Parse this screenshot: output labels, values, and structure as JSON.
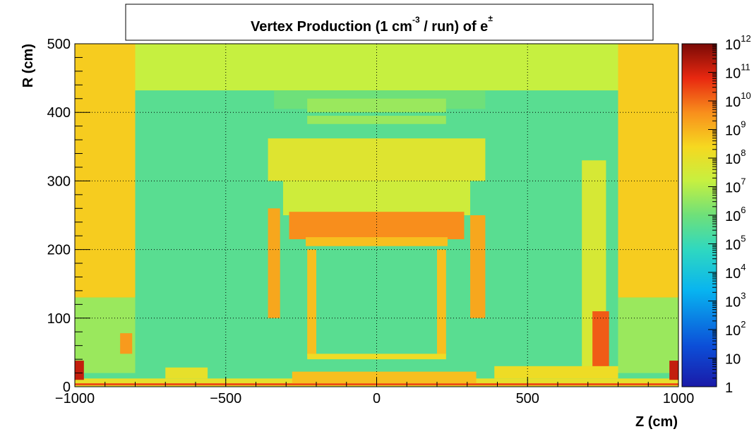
{
  "chart_data": {
    "type": "heatmap",
    "title_main": "Vertex Production (1 cm",
    "title_sup1": "-3",
    "title_mid": " / run) of   e",
    "title_sup2": "±",
    "xlabel": "Z (cm)",
    "ylabel": "R (cm)",
    "xlim": [
      -1000,
      1000
    ],
    "ylim": [
      0,
      500
    ],
    "x_ticks": [
      -1000,
      -500,
      0,
      500,
      1000
    ],
    "x_tick_labels": [
      "−1000",
      "−500",
      "0",
      "500",
      "1000"
    ],
    "y_ticks": [
      0,
      100,
      200,
      300,
      400,
      500
    ],
    "y_tick_labels": [
      "0",
      "100",
      "200",
      "300",
      "400",
      "500"
    ],
    "grid": true,
    "colorbar": {
      "scale": "log",
      "min_exp": 0,
      "max_exp": 12,
      "labels": [
        {
          "base": "1",
          "exp": ""
        },
        {
          "base": "10",
          "exp": ""
        },
        {
          "base": "10",
          "exp": "2"
        },
        {
          "base": "10",
          "exp": "3"
        },
        {
          "base": "10",
          "exp": "4"
        },
        {
          "base": "10",
          "exp": "5"
        },
        {
          "base": "10",
          "exp": "6"
        },
        {
          "base": "10",
          "exp": "7"
        },
        {
          "base": "10",
          "exp": "8"
        },
        {
          "base": "10",
          "exp": "9"
        },
        {
          "base": "10",
          "exp": "10"
        },
        {
          "base": "10",
          "exp": "11"
        },
        {
          "base": "10",
          "exp": "12"
        }
      ]
    },
    "regions": [
      {
        "name": "background",
        "z": [
          -1000,
          1000
        ],
        "r": [
          0,
          500
        ],
        "level": 5.6
      },
      {
        "name": "upper-band",
        "z": [
          -1000,
          1000
        ],
        "r": [
          432,
          500
        ],
        "level": 7.2
      },
      {
        "name": "left-endcap",
        "z": [
          -1000,
          -800
        ],
        "r": [
          130,
          500
        ],
        "level": 8.6
      },
      {
        "name": "right-endcap",
        "z": [
          800,
          1000
        ],
        "r": [
          130,
          500
        ],
        "level": 8.6
      },
      {
        "name": "left-endcap-lower",
        "z": [
          -1000,
          -800
        ],
        "r": [
          20,
          130
        ],
        "level": 6.6
      },
      {
        "name": "right-endcap-lower",
        "z": [
          800,
          1000
        ],
        "r": [
          20,
          130
        ],
        "level": 6.6
      },
      {
        "name": "upper-structure",
        "z": [
          -340,
          360
        ],
        "r": [
          405,
          432
        ],
        "level": 6.0
      },
      {
        "name": "top-slab-1",
        "z": [
          -230,
          230
        ],
        "r": [
          383,
          395
        ],
        "level": 6.6
      },
      {
        "name": "top-slab-2",
        "z": [
          -230,
          230
        ],
        "r": [
          400,
          420
        ],
        "level": 6.6
      },
      {
        "name": "magnet-yoke",
        "z": [
          -360,
          360
        ],
        "r": [
          300,
          362
        ],
        "level": 7.8
      },
      {
        "name": "calorimeter-upper",
        "z": [
          -310,
          310
        ],
        "r": [
          250,
          300
        ],
        "level": 7.4
      },
      {
        "name": "solenoid",
        "z": [
          -290,
          290
        ],
        "r": [
          215,
          255
        ],
        "level": 9.6
      },
      {
        "name": "solenoid-support",
        "z": [
          -235,
          235
        ],
        "r": [
          205,
          218
        ],
        "level": 8.8
      },
      {
        "name": "left-calo-wall",
        "z": [
          -360,
          -320
        ],
        "r": [
          100,
          260
        ],
        "level": 9.2
      },
      {
        "name": "right-calo-wall",
        "z": [
          310,
          360
        ],
        "r": [
          100,
          250
        ],
        "level": 9.2
      },
      {
        "name": "left-inner-wall",
        "z": [
          -230,
          -200
        ],
        "r": [
          45,
          200
        ],
        "level": 8.8
      },
      {
        "name": "right-inner-wall",
        "z": [
          200,
          230
        ],
        "r": [
          45,
          200
        ],
        "level": 8.8
      },
      {
        "name": "bottom-slab",
        "z": [
          -230,
          230
        ],
        "r": [
          40,
          48
        ],
        "level": 8.2
      },
      {
        "name": "beam-floor",
        "z": [
          -1000,
          1000
        ],
        "r": [
          0,
          12
        ],
        "level": 8.0
      },
      {
        "name": "beam-line",
        "z": [
          -1000,
          1000
        ],
        "r": [
          2,
          5
        ],
        "level": 10.4
      },
      {
        "name": "left-small-block",
        "z": [
          -850,
          -810
        ],
        "r": [
          48,
          78
        ],
        "level": 9.4
      },
      {
        "name": "left-corner",
        "z": [
          -1000,
          -970
        ],
        "r": [
          10,
          38
        ],
        "level": 11.2
      },
      {
        "name": "right-corner",
        "z": [
          970,
          1000
        ],
        "r": [
          10,
          38
        ],
        "level": 11.2
      },
      {
        "name": "right-support-1",
        "z": [
          680,
          760
        ],
        "r": [
          20,
          330
        ],
        "level": 7.6
      },
      {
        "name": "right-support-2",
        "z": [
          715,
          770
        ],
        "r": [
          20,
          110
        ],
        "level": 10.2
      },
      {
        "name": "right-floor-slab",
        "z": [
          390,
          800
        ],
        "r": [
          12,
          30
        ],
        "level": 8.2
      },
      {
        "name": "left-floor-slab",
        "z": [
          -700,
          -560
        ],
        "r": [
          12,
          28
        ],
        "level": 8.0
      },
      {
        "name": "central-floor",
        "z": [
          -280,
          330
        ],
        "r": [
          5,
          22
        ],
        "level": 8.8
      }
    ]
  }
}
